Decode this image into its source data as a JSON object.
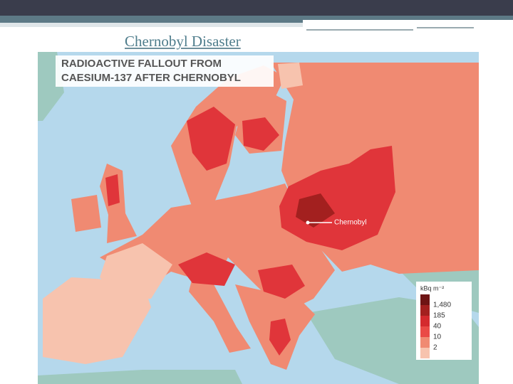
{
  "slide": {
    "title": "Chernobyl Disaster"
  },
  "map": {
    "title_lines": [
      "RADIOACTIVE FALLOUT FROM",
      "CAESIUM-137 AFTER CHERNOBYL"
    ],
    "marker_label": "Chernobyl",
    "legend": {
      "unit": "kBq m⁻²",
      "colors": [
        "#6e1414",
        "#a3201f",
        "#d42a2e",
        "#ea4a46",
        "#f08a72",
        "#f7c3ae"
      ],
      "labels": [
        "1,480",
        "185",
        "40",
        "10",
        "2"
      ]
    }
  }
}
